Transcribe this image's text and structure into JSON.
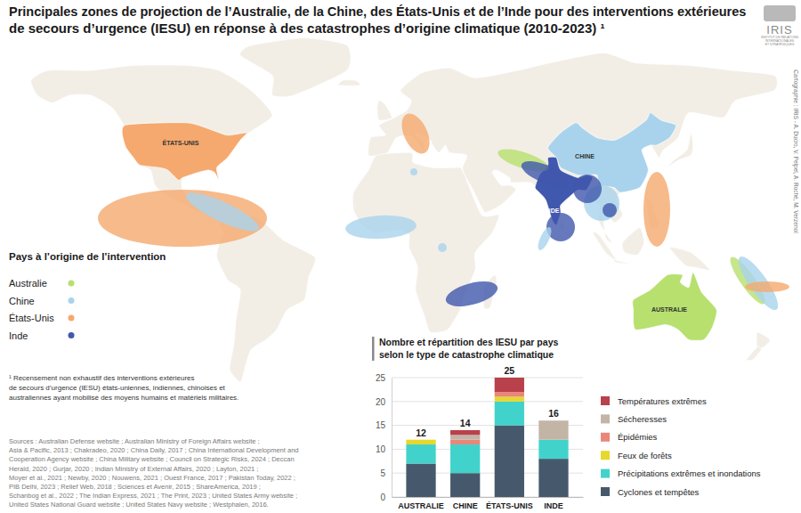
{
  "map": {
    "title": [
      "Principales zones de projection de l’Australie, de la Chine, des États-Unis et de l’Inde pour des interventions extérieures",
      "de secours d’urgence (IESU) en réponse à des catastrophes d’origine climatique (2010-2023) ¹"
    ],
    "legend_title": "Pays à l’origine de l’intervention",
    "legend": [
      {
        "name": "Australie",
        "color": "#b7e06e"
      },
      {
        "name": "Chine",
        "color": "#a9d3ec"
      },
      {
        "name": "États-Unis",
        "color": "#f5a96e"
      },
      {
        "name": "Inde",
        "color": "#4058ad"
      }
    ],
    "country_labels": [
      "AUSTRALIE",
      "CHINE",
      "ÉTATS-UNIS",
      "INDE"
    ],
    "footnote": [
      "¹ Recensement non exhaustif des interventions extérieures",
      "de secours d’urgence (IESU) états-uniennes, indiennes, chinoises et",
      "australiennes ayant mobilisé des moyens humains et matériels militaires."
    ],
    "sources": [
      "Sources : Australian Defense website ; Australian Ministry of Foreign Affairs website ;",
      "Asia & Pacific, 2013 ; Chakradeo, 2020 ;  China Daily, 2017 ; China International Development and",
      "Cooperation Agency website ; China Military website ; Council on Strategic Risks, 2024 ; Deccan",
      "Herald, 2020 ; Gurjar, 2020 ; Indian Ministry of External Affairs, 2020 ; Layton, 2021 ;",
      "Moyer et al., 2021 ; Newby, 2020 ; Nouwens, 2021 ; Ouest France, 2017 ; Pakistan Today, 2022 ;",
      "PIB Delhi, 2023 ; Relief Web, 2018 ; Sciences et Avenir, 2015 ; ShareAmerica, 2019 ;",
      "Schanbog et al., 2022 ; The Indian Express, 2021 ; The Print, 2023 ; United States Army website ;",
      "United States National Guard website ; United States Navy website ; Westphalen, 2016."
    ],
    "credit": "Cartographie : IRIS - A. Ducro, V. Pelpel, A. Roché, M. Verzenol",
    "logo": "IRIS",
    "logo_subtitle": [
      "INSTITUT DE RELATIONS",
      "INTERNATIONALES",
      "ET STRATÉGIQUES"
    ]
  },
  "chart_data": {
    "type": "bar",
    "stacked": true,
    "title": [
      "Nombre et répartition des IESU par pays",
      "selon le type de catastrophe climatique"
    ],
    "categories": [
      "AUSTRALIE",
      "CHINE",
      "ÉTATS-UNIS",
      "INDE"
    ],
    "series": [
      {
        "name": "Cyclones et tempêtes",
        "color": "#46596c",
        "values": [
          7,
          5,
          15,
          8
        ]
      },
      {
        "name": "Précipitations extrêmes et inondations",
        "color": "#41d3cb",
        "values": [
          4,
          6,
          5,
          4
        ]
      },
      {
        "name": "Feux de forêts",
        "color": "#e6d82c",
        "values": [
          1,
          0,
          1,
          0
        ]
      },
      {
        "name": "Épidémies",
        "color": "#e9877a",
        "values": [
          0,
          1,
          1,
          0
        ]
      },
      {
        "name": "Sécheresses",
        "color": "#c3b5a6",
        "values": [
          0,
          1,
          0,
          4
        ]
      },
      {
        "name": "Températures extrêmes",
        "color": "#b8414b",
        "values": [
          0,
          1,
          3,
          0
        ]
      }
    ],
    "totals": [
      12,
      14,
      25,
      16
    ],
    "ylim": [
      0,
      25
    ],
    "yticks": [
      0,
      5,
      10,
      15,
      20,
      25
    ],
    "grid": true
  }
}
